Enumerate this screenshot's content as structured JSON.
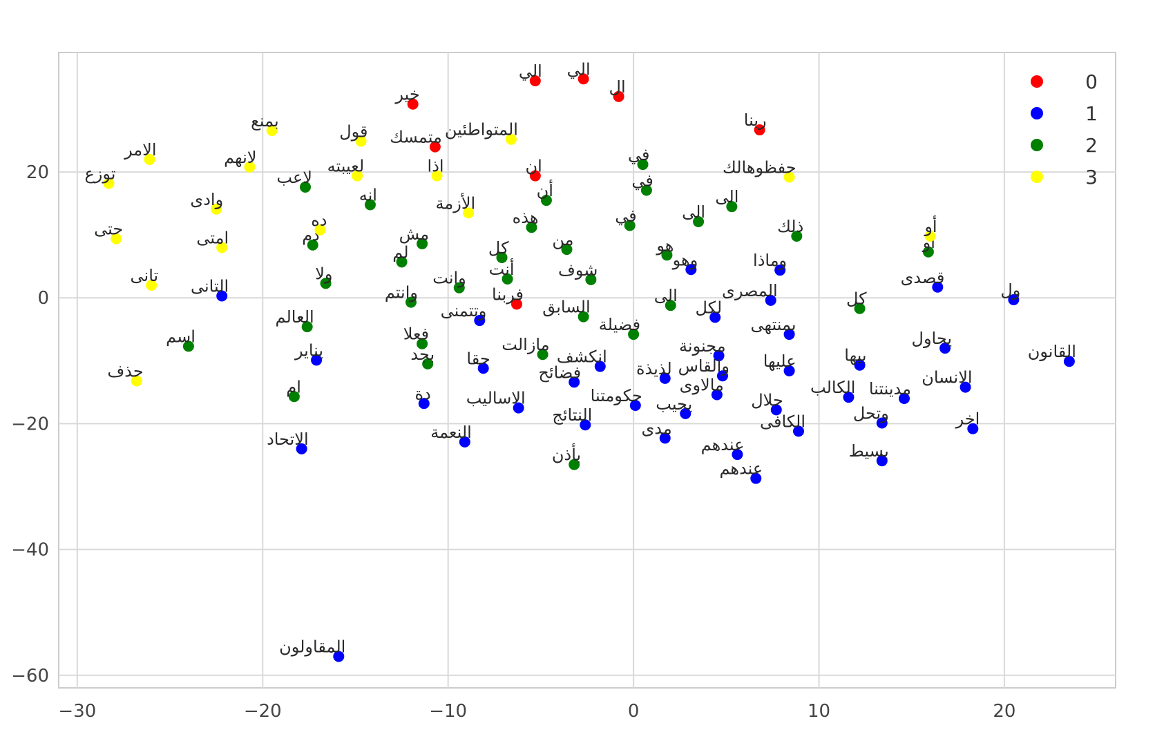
{
  "chart_data": {
    "type": "scatter",
    "title": "",
    "xlabel": "",
    "ylabel": "",
    "xlim": [
      -31,
      26
    ],
    "ylim": [
      -62,
      39
    ],
    "xticks": [
      -30,
      -20,
      -10,
      0,
      10,
      20
    ],
    "yticks": [
      20,
      0,
      -20,
      -40,
      -60
    ],
    "grid": true,
    "legend_position": "top-right",
    "colors": {
      "0": "#ff0000",
      "1": "#0000ff",
      "2": "#008000",
      "3": "#ffff00"
    },
    "series": [
      {
        "name": "0",
        "points": [
          {
            "x": -5.3,
            "y": 34.5,
            "label": "الي"
          },
          {
            "x": -2.7,
            "y": 34.8,
            "label": "الي"
          },
          {
            "x": -0.8,
            "y": 32.0,
            "label": "ال"
          },
          {
            "x": -11.9,
            "y": 30.8,
            "label": "خير"
          },
          {
            "x": 6.8,
            "y": 26.7,
            "label": "ربنا"
          },
          {
            "x": -10.7,
            "y": 24.0,
            "label": "متمسك"
          },
          {
            "x": -5.3,
            "y": 19.4,
            "label": "ان"
          },
          {
            "x": -6.3,
            "y": -1.0,
            "label": "فربنا"
          }
        ]
      },
      {
        "name": "1",
        "points": [
          {
            "x": 3.1,
            "y": 4.5,
            "label": "وهو"
          },
          {
            "x": 7.9,
            "y": 4.4,
            "label": "وماذا"
          },
          {
            "x": 16.4,
            "y": 1.7,
            "label": "قصدى"
          },
          {
            "x": -22.2,
            "y": 0.3,
            "label": "التانى"
          },
          {
            "x": 20.5,
            "y": -0.3,
            "label": "ول"
          },
          {
            "x": 7.4,
            "y": -0.4,
            "label": "المصرى"
          },
          {
            "x": -8.3,
            "y": -3.6,
            "label": "وتتمنى"
          },
          {
            "x": 4.4,
            "y": -3.1,
            "label": "لكل"
          },
          {
            "x": 8.4,
            "y": -5.8,
            "label": "بمنتهى"
          },
          {
            "x": 16.8,
            "y": -8.0,
            "label": "يحاول"
          },
          {
            "x": 4.6,
            "y": -9.2,
            "label": "مجنونة"
          },
          {
            "x": -17.1,
            "y": -9.9,
            "label": "يناير"
          },
          {
            "x": 23.5,
            "y": -10.1,
            "label": "القانون"
          },
          {
            "x": 12.2,
            "y": -10.7,
            "label": "بيها"
          },
          {
            "x": -8.1,
            "y": -11.2,
            "label": "حقا"
          },
          {
            "x": -1.8,
            "y": -10.9,
            "label": "انكشف"
          },
          {
            "x": 8.4,
            "y": -11.6,
            "label": "عليها"
          },
          {
            "x": 4.8,
            "y": -12.4,
            "label": "والقاس"
          },
          {
            "x": 1.7,
            "y": -12.8,
            "label": "لذيذة"
          },
          {
            "x": -3.2,
            "y": -13.4,
            "label": "فضائح"
          },
          {
            "x": 17.9,
            "y": -14.2,
            "label": "الانسان"
          },
          {
            "x": 4.5,
            "y": -15.4,
            "label": "مالاوى"
          },
          {
            "x": 11.6,
            "y": -15.8,
            "label": "الكالب"
          },
          {
            "x": 14.6,
            "y": -16.0,
            "label": "مدينتنا"
          },
          {
            "x": -11.3,
            "y": -16.8,
            "label": "دة"
          },
          {
            "x": 0.1,
            "y": -17.1,
            "label": "حكومتنا"
          },
          {
            "x": -6.2,
            "y": -17.5,
            "label": "الاساليب"
          },
          {
            "x": 7.7,
            "y": -17.8,
            "label": "حلال"
          },
          {
            "x": 2.8,
            "y": -18.4,
            "label": "يجيب"
          },
          {
            "x": 13.4,
            "y": -19.9,
            "label": "وتحل"
          },
          {
            "x": -2.6,
            "y": -20.2,
            "label": "النتائج"
          },
          {
            "x": 18.3,
            "y": -20.8,
            "label": "اخر"
          },
          {
            "x": 8.9,
            "y": -21.2,
            "label": "الكافى"
          },
          {
            "x": 1.7,
            "y": -22.3,
            "label": "مدى"
          },
          {
            "x": -9.1,
            "y": -22.9,
            "label": "النعمة"
          },
          {
            "x": -17.9,
            "y": -24.0,
            "label": "الاتحاد"
          },
          {
            "x": 5.6,
            "y": -24.9,
            "label": "عندهم"
          },
          {
            "x": 13.4,
            "y": -25.9,
            "label": "بسيط"
          },
          {
            "x": 6.6,
            "y": -28.7,
            "label": "عندهم"
          },
          {
            "x": -15.9,
            "y": -57.0,
            "label": "المقاولون"
          }
        ]
      },
      {
        "name": "2",
        "points": [
          {
            "x": 0.5,
            "y": 21.2,
            "label": "في"
          },
          {
            "x": -17.7,
            "y": 17.6,
            "label": "لاعب"
          },
          {
            "x": 0.7,
            "y": 17.1,
            "label": "في"
          },
          {
            "x": -4.7,
            "y": 15.5,
            "label": "أن"
          },
          {
            "x": 5.3,
            "y": 14.5,
            "label": "الى"
          },
          {
            "x": -14.2,
            "y": 14.8,
            "label": "انه"
          },
          {
            "x": 3.5,
            "y": 12.1,
            "label": "الى"
          },
          {
            "x": -5.5,
            "y": 11.2,
            "label": "هذه"
          },
          {
            "x": -0.2,
            "y": 11.5,
            "label": "في"
          },
          {
            "x": 8.8,
            "y": 9.8,
            "label": "ذلك"
          },
          {
            "x": -11.4,
            "y": 8.6,
            "label": "مش"
          },
          {
            "x": -17.3,
            "y": 8.4,
            "label": "دم"
          },
          {
            "x": -3.6,
            "y": 7.7,
            "label": "من"
          },
          {
            "x": 15.9,
            "y": 7.3,
            "label": "او"
          },
          {
            "x": -7.1,
            "y": 6.4,
            "label": "كل"
          },
          {
            "x": 1.8,
            "y": 6.8,
            "label": "هو"
          },
          {
            "x": -12.5,
            "y": 5.7,
            "label": "لم"
          },
          {
            "x": -6.8,
            "y": 3.0,
            "label": "أنت"
          },
          {
            "x": -2.3,
            "y": 2.9,
            "label": "شوف"
          },
          {
            "x": -16.6,
            "y": 2.3,
            "label": "ولا"
          },
          {
            "x": -9.4,
            "y": 1.6,
            "label": "وانت"
          },
          {
            "x": -12.0,
            "y": -0.7,
            "label": "وانتم"
          },
          {
            "x": 2.0,
            "y": -1.2,
            "label": "الى"
          },
          {
            "x": 12.2,
            "y": -1.7,
            "label": "كل"
          },
          {
            "x": -2.7,
            "y": -3.0,
            "label": "السابق"
          },
          {
            "x": -17.6,
            "y": -4.6,
            "label": "العالم"
          },
          {
            "x": 0.0,
            "y": -5.8,
            "label": "فضيلة"
          },
          {
            "x": -11.4,
            "y": -7.3,
            "label": "فعلا"
          },
          {
            "x": -24.0,
            "y": -7.7,
            "label": "اسم"
          },
          {
            "x": -4.9,
            "y": -9.0,
            "label": "مازالت"
          },
          {
            "x": -11.1,
            "y": -10.5,
            "label": "بجد"
          },
          {
            "x": -18.3,
            "y": -15.7,
            "label": "ام"
          },
          {
            "x": -3.2,
            "y": -26.5,
            "label": "بأذن"
          }
        ]
      },
      {
        "name": "3",
        "points": [
          {
            "x": -19.5,
            "y": 26.6,
            "label": "بمنع"
          },
          {
            "x": -14.7,
            "y": 24.9,
            "label": "قول"
          },
          {
            "x": -6.6,
            "y": 25.2,
            "label": "المتواطئين"
          },
          {
            "x": -26.1,
            "y": 22.0,
            "label": "الامر"
          },
          {
            "x": -20.7,
            "y": 20.8,
            "label": "لانهم"
          },
          {
            "x": -14.9,
            "y": 19.4,
            "label": "لعيبته"
          },
          {
            "x": -10.6,
            "y": 19.4,
            "label": "اذا"
          },
          {
            "x": 8.4,
            "y": 19.2,
            "label": "حفظوهالك"
          },
          {
            "x": -28.3,
            "y": 18.2,
            "label": "توزع"
          },
          {
            "x": -22.5,
            "y": 14.1,
            "label": "وادى"
          },
          {
            "x": -8.9,
            "y": 13.5,
            "label": "الأزمة"
          },
          {
            "x": -16.9,
            "y": 10.8,
            "label": "ده"
          },
          {
            "x": 16.0,
            "y": 9.8,
            "label": "أو"
          },
          {
            "x": -27.9,
            "y": 9.4,
            "label": "حتى"
          },
          {
            "x": -22.2,
            "y": 8.0,
            "label": "امتى"
          },
          {
            "x": -26.0,
            "y": 2.0,
            "label": "تانى"
          },
          {
            "x": -26.8,
            "y": -13.2,
            "label": "حذف"
          }
        ]
      }
    ]
  }
}
